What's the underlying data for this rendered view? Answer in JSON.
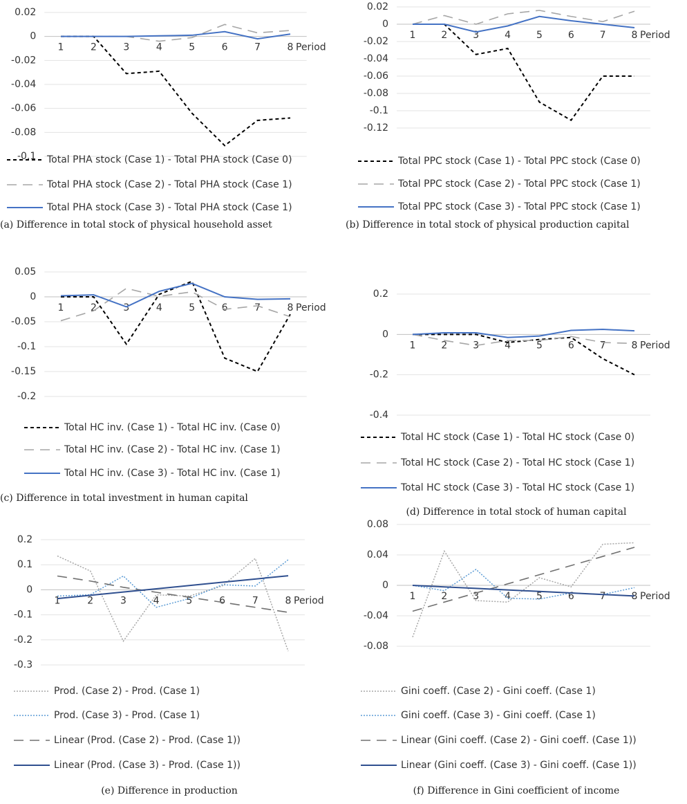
{
  "chart_data": [
    {
      "type": "line",
      "caption": "(a) Difference in total stock of physical household asset",
      "x_label": "Period",
      "categories": [
        1,
        2,
        3,
        4,
        5,
        6,
        7,
        8
      ],
      "ylim": [
        -0.1,
        0.02
      ],
      "yticks": [
        0.02,
        0,
        -0.02,
        -0.04,
        -0.06,
        -0.08,
        -0.1
      ],
      "grid": true,
      "series": [
        {
          "name": "Total PHA stock (Case 1) - Total PHA stock (Case 0)",
          "color": "#000000",
          "style": "dashed",
          "values": [
            0,
            0,
            -0.031,
            -0.029,
            -0.064,
            -0.091,
            -0.07,
            -0.068
          ]
        },
        {
          "name": "Total PHA stock (Case 2) - Total PHA stock (Case 1)",
          "color": "#a6a6a6",
          "style": "long-dash",
          "values": [
            0,
            0,
            0,
            -0.004,
            -0.001,
            0.01,
            0.003,
            0.005
          ]
        },
        {
          "name": "Total PHA stock (Case 3) - Total PHA stock (Case 1)",
          "color": "#4472c4",
          "style": "solid",
          "values": [
            0,
            0,
            0,
            0.0005,
            0.001,
            0.004,
            -0.002,
            0.002
          ]
        }
      ]
    },
    {
      "type": "line",
      "caption": "(b) Difference in total stock of physical production capital",
      "x_label": "Period",
      "categories": [
        1,
        2,
        3,
        4,
        5,
        6,
        7,
        8
      ],
      "ylim": [
        -0.12,
        0.02
      ],
      "yticks": [
        0.02,
        0,
        -0.02,
        -0.04,
        -0.06,
        -0.08,
        -0.1,
        -0.12
      ],
      "grid": true,
      "series": [
        {
          "name": "Total PPC stock (Case 1) - Total PPC stock (Case 0)",
          "color": "#000000",
          "style": "dashed",
          "values": [
            0,
            0,
            -0.035,
            -0.028,
            -0.09,
            -0.111,
            -0.06,
            -0.06
          ]
        },
        {
          "name": "Total PPC stock (Case 2) - Total PPC stock (Case 1)",
          "color": "#a6a6a6",
          "style": "long-dash",
          "values": [
            0,
            0.01,
            0,
            0.012,
            0.016,
            0.009,
            0.003,
            0.015
          ]
        },
        {
          "name": "Total PPC stock (Case 3) - Total PPC stock (Case 1)",
          "color": "#4472c4",
          "style": "solid",
          "values": [
            0,
            0,
            -0.009,
            -0.002,
            0.009,
            0.004,
            0,
            -0.004
          ]
        }
      ]
    },
    {
      "type": "line",
      "caption": "(c) Difference in total investment in human capital",
      "x_label": "Period",
      "categories": [
        1,
        2,
        3,
        4,
        5,
        6,
        7,
        8
      ],
      "ylim": [
        -0.2,
        0.05
      ],
      "yticks": [
        0.05,
        0,
        -0.05,
        -0.1,
        -0.15,
        -0.2
      ],
      "grid": true,
      "series": [
        {
          "name": "Total HC inv. (Case 1) - Total HC inv. (Case 0)",
          "color": "#000000",
          "style": "dashed",
          "values": [
            0,
            0,
            -0.095,
            0.005,
            0.031,
            -0.123,
            -0.15,
            -0.035
          ]
        },
        {
          "name": "Total HC inv. (Case 2) - Total HC inv. (Case 1)",
          "color": "#a6a6a6",
          "style": "long-dash",
          "values": [
            -0.048,
            -0.028,
            0.017,
            0.001,
            0.01,
            -0.025,
            -0.018,
            -0.04
          ]
        },
        {
          "name": "Total HC inv. (Case 3) - Total HC inv. (Case 1)",
          "color": "#4472c4",
          "style": "solid",
          "values": [
            0.002,
            0.004,
            -0.02,
            0.011,
            0.027,
            0,
            -0.005,
            -0.004
          ]
        }
      ]
    },
    {
      "type": "line",
      "caption": "(d) Difference in total stock of human capital",
      "x_label": "Period",
      "categories": [
        1,
        2,
        3,
        4,
        5,
        6,
        7,
        8
      ],
      "ylim": [
        -0.4,
        0.2
      ],
      "yticks": [
        0.2,
        0,
        -0.2,
        -0.4
      ],
      "grid": true,
      "series": [
        {
          "name": "Total HC stock (Case 1) - Total HC stock (Case 0)",
          "color": "#000000",
          "style": "dashed",
          "values": [
            0,
            0,
            0,
            -0.04,
            -0.025,
            -0.015,
            -0.12,
            -0.2
          ]
        },
        {
          "name": "Total HC stock (Case 2) - Total HC stock (Case 1)",
          "color": "#a6a6a6",
          "style": "long-dash",
          "values": [
            0,
            -0.03,
            -0.055,
            -0.03,
            -0.03,
            -0.01,
            -0.04,
            -0.045
          ]
        },
        {
          "name": "Total HC stock (Case 3) - Total HC stock (Case 1)",
          "color": "#4472c4",
          "style": "solid",
          "values": [
            0,
            0.008,
            0.008,
            -0.015,
            -0.008,
            0.02,
            0.025,
            0.018
          ]
        }
      ]
    },
    {
      "type": "line",
      "caption": "(e) Difference in production",
      "x_label": "Period",
      "categories": [
        1,
        2,
        3,
        4,
        5,
        6,
        7,
        8
      ],
      "ylim": [
        -0.3,
        0.2
      ],
      "yticks": [
        0.2,
        0.1,
        0,
        -0.1,
        -0.2,
        -0.3
      ],
      "grid": true,
      "series": [
        {
          "name": "Prod. (Case 2) - Prod. (Case 1)",
          "color": "#a6a6a6",
          "style": "dotted",
          "values": [
            0.135,
            0.075,
            -0.205,
            -0.02,
            -0.025,
            0.015,
            0.125,
            -0.245
          ]
        },
        {
          "name": "Prod. (Case 3) - Prod. (Case 1)",
          "color": "#5b9bd5",
          "style": "dotted",
          "values": [
            -0.025,
            -0.02,
            0.055,
            -0.07,
            -0.035,
            0.02,
            0.015,
            0.12
          ]
        },
        {
          "name": "Linear (Prod. (Case 2) - Prod. (Case 1))",
          "color": "#707070",
          "style": "long-dash",
          "values": [
            0.055,
            0.035,
            0.01,
            -0.01,
            -0.03,
            -0.05,
            -0.07,
            -0.09
          ]
        },
        {
          "name": "Linear (Prod. (Case 3) - Prod. (Case 1))",
          "color": "#2f4f8f",
          "style": "solid",
          "values": [
            -0.035,
            -0.022,
            -0.009,
            0.004,
            0.017,
            0.03,
            0.043,
            0.056
          ]
        }
      ]
    },
    {
      "type": "line",
      "caption": "(f) Difference in Gini coefficient of income",
      "x_label": "Period",
      "categories": [
        1,
        2,
        3,
        4,
        5,
        6,
        7,
        8
      ],
      "ylim": [
        -0.08,
        0.08
      ],
      "yticks": [
        0.08,
        0.04,
        0,
        -0.04,
        -0.08
      ],
      "grid": true,
      "series": [
        {
          "name": "Gini coeff. (Case 2) - Gini coeff. (Case 1)",
          "color": "#a6a6a6",
          "style": "dotted",
          "values": [
            -0.068,
            0.045,
            -0.02,
            -0.022,
            0.01,
            -0.002,
            0.054,
            0.056
          ]
        },
        {
          "name": "Gini coeff. (Case 3) - Gini coeff. (Case 1)",
          "color": "#5b9bd5",
          "style": "dotted",
          "values": [
            0,
            -0.007,
            0.021,
            -0.017,
            -0.018,
            -0.01,
            -0.012,
            -0.003
          ]
        },
        {
          "name": "Linear (Gini coeff. (Case 2) - Gini coeff. (Case 1))",
          "color": "#707070",
          "style": "long-dash",
          "values": [
            -0.034,
            -0.022,
            -0.01,
            0.002,
            0.014,
            0.026,
            0.038,
            0.05
          ]
        },
        {
          "name": "Linear (Gini coeff. (Case 3) - Gini coeff. (Case 1))",
          "color": "#2f4f8f",
          "style": "solid",
          "values": [
            0,
            -0.002,
            -0.004,
            -0.006,
            -0.008,
            -0.01,
            -0.012,
            -0.014
          ]
        }
      ]
    }
  ]
}
